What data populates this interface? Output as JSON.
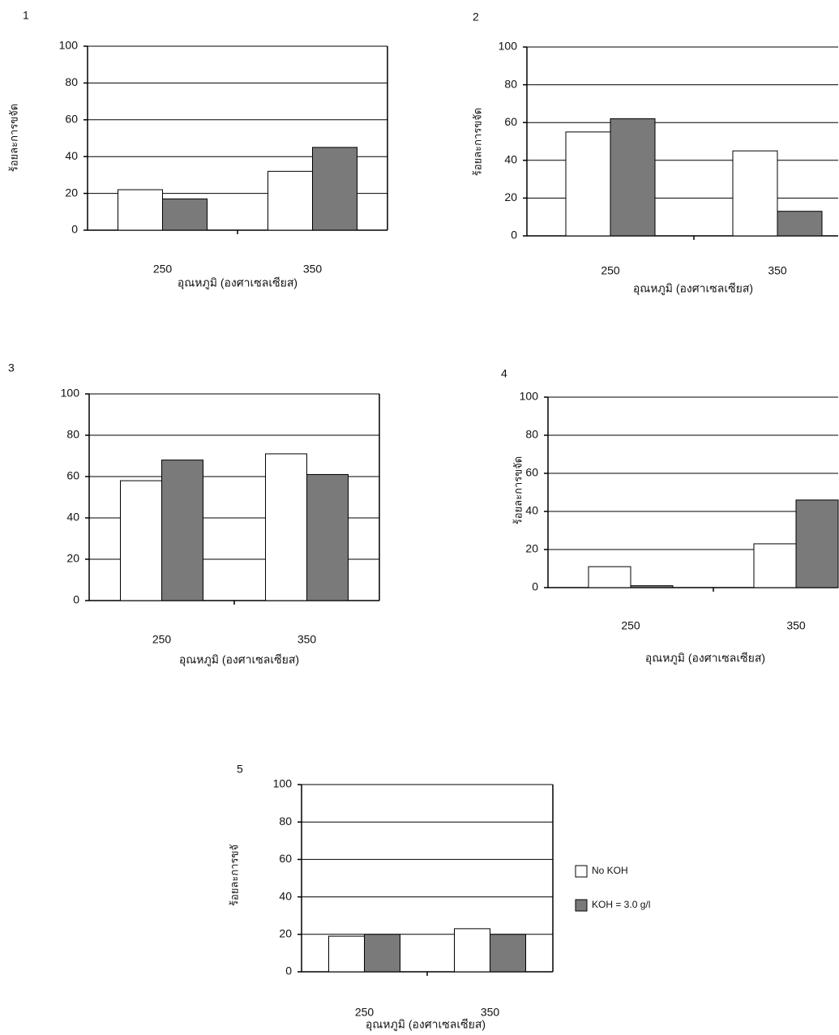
{
  "chart_data": [
    {
      "type": "bar",
      "label": "1",
      "ylabel": "ร้อยละการขจัด",
      "xlabel": "อุณหภูมิ (องศาเซลเซียส)",
      "categories": [
        "250",
        "350"
      ],
      "series": [
        {
          "color": "#ffffff",
          "values": [
            22,
            32
          ]
        },
        {
          "color": "#7a7a7a",
          "values": [
            17,
            45
          ]
        }
      ],
      "ylim": [
        0,
        100
      ],
      "yticks": [
        0,
        20,
        40,
        60,
        80,
        100
      ],
      "grid": true
    },
    {
      "type": "bar",
      "label": "2",
      "ylabel": "ร้อยละการขจัด",
      "xlabel": "อุณหภูมิ (องศาเซลเซียส)",
      "categories": [
        "250",
        "350"
      ],
      "series": [
        {
          "color": "#ffffff",
          "values": [
            55,
            45
          ]
        },
        {
          "color": "#7a7a7a",
          "values": [
            62,
            13
          ]
        }
      ],
      "ylim": [
        0,
        100
      ],
      "yticks": [
        0,
        20,
        40,
        60,
        80,
        100
      ],
      "grid": true
    },
    {
      "type": "bar",
      "label": "3",
      "xlabel": "อุณหภูมิ (องศาเซลเซียส)",
      "categories": [
        "250",
        "350"
      ],
      "series": [
        {
          "color": "#ffffff",
          "values": [
            58,
            71
          ]
        },
        {
          "color": "#7a7a7a",
          "values": [
            68,
            61
          ]
        }
      ],
      "ylim": [
        0,
        100
      ],
      "yticks": [
        0,
        20,
        40,
        60,
        80,
        100
      ],
      "grid": true
    },
    {
      "type": "bar",
      "label": "4",
      "ylabel": "ร้อยละการขจัด",
      "xlabel": "อุณหภูมิ (องศาเซลเซียส)",
      "categories": [
        "250",
        "350"
      ],
      "series": [
        {
          "color": "#ffffff",
          "values": [
            11,
            23
          ]
        },
        {
          "color": "#7a7a7a",
          "values": [
            1,
            46
          ]
        }
      ],
      "ylim": [
        0,
        100
      ],
      "yticks": [
        0,
        20,
        40,
        60,
        80,
        100
      ],
      "grid": true
    },
    {
      "type": "bar",
      "label": "5",
      "ylabel": "ร้อยละการขจั",
      "xlabel": "อุณหภูมิ (องศาเซลเซียส)",
      "categories": [
        "250",
        "350"
      ],
      "series": [
        {
          "name": "No KOH",
          "color": "#ffffff",
          "values": [
            19,
            23
          ]
        },
        {
          "name": "KOH = 3.0 g/l",
          "color": "#7a7a7a",
          "values": [
            20,
            20
          ]
        }
      ],
      "ylim": [
        0,
        100
      ],
      "yticks": [
        0,
        20,
        40,
        60,
        80,
        100
      ],
      "grid": true,
      "legend": "right"
    }
  ]
}
